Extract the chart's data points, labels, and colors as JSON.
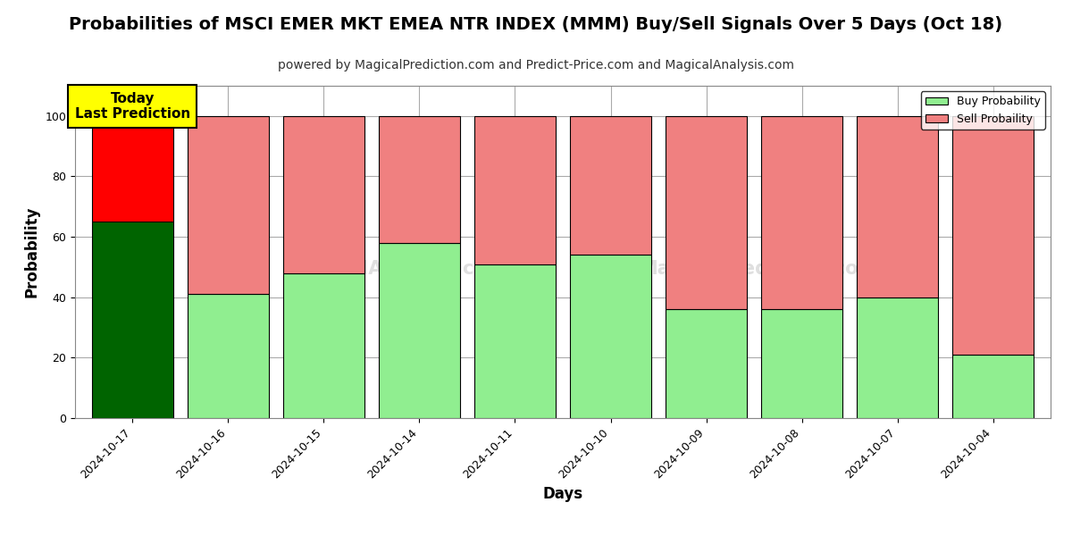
{
  "title": "Probabilities of MSCI EMER MKT EMEA NTR INDEX (MMM) Buy/Sell Signals Over 5 Days (Oct 18)",
  "subtitle": "powered by MagicalPrediction.com and Predict-Price.com and MagicalAnalysis.com",
  "xlabel": "Days",
  "ylabel": "Probability",
  "categories": [
    "2024-10-17",
    "2024-10-16",
    "2024-10-15",
    "2024-10-14",
    "2024-10-11",
    "2024-10-10",
    "2024-10-09",
    "2024-10-08",
    "2024-10-07",
    "2024-10-04"
  ],
  "buy_values": [
    65,
    41,
    48,
    58,
    51,
    54,
    36,
    36,
    40,
    21
  ],
  "sell_values": [
    35,
    59,
    52,
    42,
    49,
    46,
    64,
    64,
    60,
    79
  ],
  "today_buy_color": "#006400",
  "today_sell_color": "#FF0000",
  "buy_color": "#90EE90",
  "sell_color": "#F08080",
  "bar_edge_color": "#000000",
  "today_annotation_bg": "#FFFF00",
  "today_annotation_text": "Today\nLast Prediction",
  "legend_buy": "Buy Probability",
  "legend_sell": "Sell Probaility",
  "ylim": [
    0,
    110
  ],
  "yticks": [
    0,
    20,
    40,
    60,
    80,
    100
  ],
  "dashed_line_y": 110,
  "title_fontsize": 14,
  "subtitle_fontsize": 10,
  "axis_label_fontsize": 12,
  "tick_fontsize": 9,
  "background_color": "#ffffff",
  "grid_color": "#aaaaaa",
  "bar_width": 0.85
}
